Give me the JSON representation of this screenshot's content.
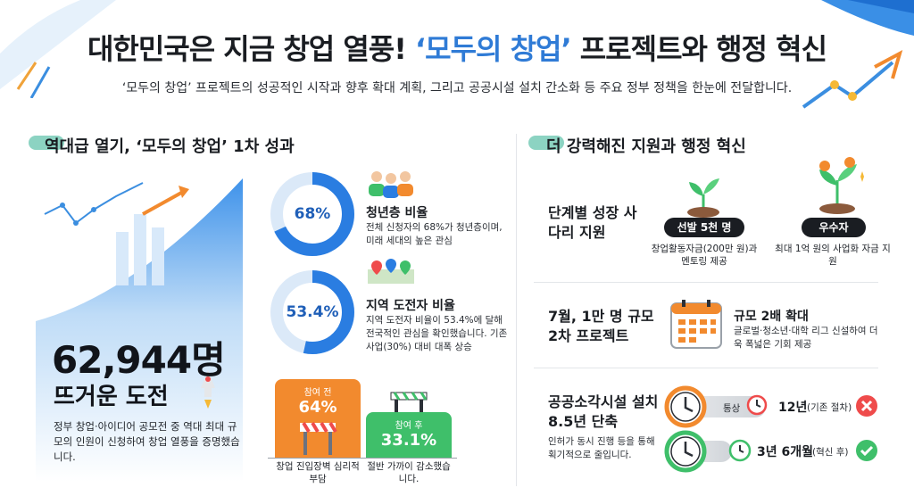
{
  "header": {
    "title_main": "대한민국은 지금 창업 열풍! ",
    "title_accent": "‘모두의 창업’",
    "title_end": " 프로젝트와 행정 혁신",
    "subtitle": "‘모두의 창업’ 프로젝트의 성공적인 시작과 향후 확대 계획, 그리고 공공시설 설치 간소화 등 주요 정부 정책을 한눈에 전달합니다."
  },
  "left": {
    "section_title": "역대급 열기, ‘모두의 창업’ 1차 성과",
    "hero": {
      "number": "62,944명",
      "headline": "뜨거운 도전",
      "desc": "정부 창업·아이디어 공모전 중 역대 최대 규모의 인원이 신청하여 창업 열풍을 증명했습니다."
    },
    "stats": [
      {
        "percent": "68%",
        "value": 68,
        "title": "청년층 비율",
        "desc": "전체 신청자의 68%가 청년층이며, 미래 세대의 높은 관심"
      },
      {
        "percent": "53.4%",
        "value": 53.4,
        "title": "지역 도전자 비율",
        "desc": "지역 도전자 비율이 53.4%에 달해 전국적인 관심을 확인했습니다. 기존 사업(30%) 대비 대폭 상승"
      }
    ],
    "bars": {
      "before_label": "참여 전",
      "before_value": "64%",
      "before_caption": "창업 진입장벽 심리적 부담",
      "after_label": "참여 후",
      "after_value": "33.1%",
      "after_caption": "절반 가까이 감소했습니다."
    }
  },
  "right": {
    "section_title": "더 강력해진 지원과 행정 혁신",
    "ladder": {
      "title": "단계별 성장 사다리 지원",
      "step1_pill": "선발 5천 명",
      "step1_desc": "창업활동자금(200만 원)과 멘토링 제공",
      "step2_pill": "우수자",
      "step2_desc": "최대 1억 원의 사업화 자금 지원"
    },
    "round2": {
      "title": "7월, 1만 명 규모 2차 프로젝트",
      "head": "규모 2배 확대",
      "desc": "글로벌·청소년·대학 리그 신설하여 더욱 폭넓은 기회 제공"
    },
    "facility": {
      "title": "공공소각시설 설치 8.5년 단축",
      "desc": "인허가 동시 진행 등을 통해 획기적으로 줄입니다.",
      "usual_label": "통상",
      "usual_years": "12년",
      "usual_note": "(기존 절차)",
      "new_years": "3년 6개월",
      "new_note": "(혁신 후)"
    }
  },
  "colors": {
    "accent_blue": "#2f7bd6",
    "ring_blue": "#2a7de1",
    "orange": "#f28a2e",
    "green": "#3fbf6a",
    "red": "#ef4b4b"
  }
}
